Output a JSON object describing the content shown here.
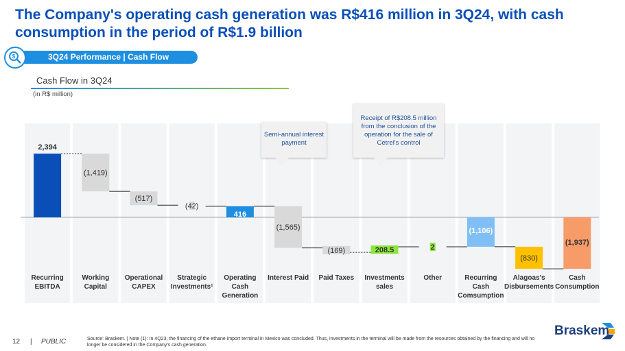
{
  "header": {
    "headline": "The Company's operating cash generation was R$416 million in 3Q24, with cash consumption in the period of R$1.9 billion",
    "section_label": "3Q24 Performance | Cash Flow"
  },
  "chart_data": {
    "type": "waterfall",
    "title": "Cash Flow in 3Q24",
    "unit": "(in R$ million)",
    "categories": [
      "Recurring EBITDA",
      "Working Capital",
      "Operational CAPEX",
      "Strategic Investments¹",
      "Operating Cash Generation",
      "Interest Paid",
      "Paid Taxes",
      "Investments sales",
      "Other",
      "Recurring Cash Comsumption",
      "Alagoas's Disbursements",
      "Cash Consumption"
    ],
    "values": [
      2394,
      -1419,
      -517,
      -42,
      416,
      -1565,
      -169,
      208.5,
      2,
      -1106,
      -830,
      -1937
    ],
    "labels": [
      "2,394",
      "(1,419)",
      "(517)",
      "(42)",
      "416",
      "(1,565)",
      "(169)",
      "208.5",
      "2",
      "(1,106)",
      "(830)",
      "(1,937)"
    ],
    "kinds": [
      "total",
      "delta",
      "delta",
      "delta",
      "total",
      "delta",
      "delta",
      "delta",
      "delta",
      "total",
      "delta",
      "total"
    ],
    "ylim": [
      -2100,
      2500
    ],
    "colors": [
      "#0a4fb8",
      "#d9d9d9",
      "#d9d9d9",
      "#d9d9d9",
      "#1e8fe0",
      "#d9d9d9",
      "#d9d9d9",
      "#8ce63a",
      "#8ce63a",
      "#7fbff5",
      "#ffc000",
      "#f79c69"
    ],
    "annotations": [
      "Semi-annual interest payment",
      "Receipt of R$208.5 million from the conclusion of the operation for the sale of Cetrel's control"
    ]
  },
  "footer": {
    "page": "12",
    "separator": "|",
    "classification": "PUBLIC",
    "source": "Source: Braskem. | Note (1): In 4Q23, the financing of the ethane import terminal in Mexico was concluded. Thus, investments in the terminal will be made from the resources obtained by the financing and will no longer be considered in the Company's cash generation.",
    "logo": "Braskem"
  }
}
